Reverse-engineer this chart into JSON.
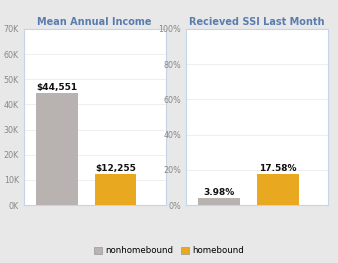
{
  "chart1_title": "Mean Annual Income",
  "chart2_title": "Recieved SSI Last Month",
  "categories": [
    "nonhomebound",
    "homebound"
  ],
  "chart1_values": [
    44551,
    12255
  ],
  "chart2_values": [
    3.98,
    17.58
  ],
  "chart1_labels": [
    "$44,551",
    "$12,255"
  ],
  "chart2_labels": [
    "3.98%",
    "17.58%"
  ],
  "bar_colors": [
    "#b8b3b0",
    "#e8a820"
  ],
  "chart1_ylim": [
    0,
    70000
  ],
  "chart1_yticks": [
    0,
    10000,
    20000,
    30000,
    40000,
    50000,
    60000,
    70000
  ],
  "chart1_yticklabels": [
    "0K",
    "10K",
    "20K",
    "30K",
    "40K",
    "50K",
    "60K",
    "70K"
  ],
  "chart2_ylim": [
    0,
    100
  ],
  "chart2_yticks": [
    0,
    20,
    40,
    60,
    80,
    100
  ],
  "chart2_yticklabels": [
    "0%",
    "20%",
    "40%",
    "60%",
    "80%",
    "100%"
  ],
  "legend_labels": [
    "nonhomebound",
    "homebound"
  ],
  "fig_bg_color": "#e8e8e8",
  "plot_bg_color": "#ffffff",
  "panel_border_color": "#c5d5e8",
  "title_color": "#5a7db0",
  "tick_color": "#888888",
  "title_fontsize": 7.0,
  "label_fontsize": 6.5,
  "tick_fontsize": 5.8,
  "legend_fontsize": 6.2,
  "bar_width": 0.5
}
